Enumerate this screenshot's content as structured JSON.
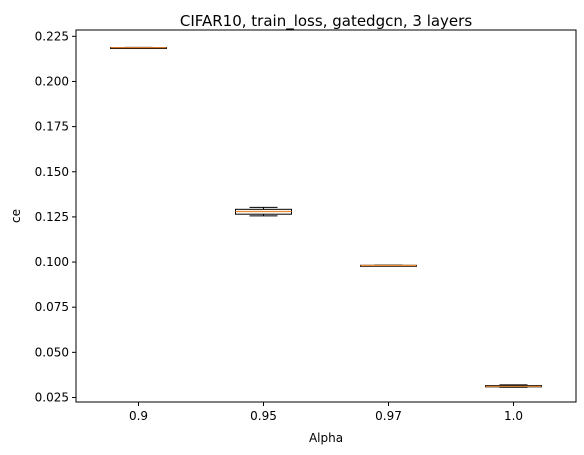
{
  "chart_data": {
    "type": "box",
    "title": "CIFAR10, train_loss, gatedgcn, 3 layers",
    "xlabel": "Alpha",
    "ylabel": "ce",
    "categories": [
      "0.9",
      "0.95",
      "0.97",
      "1.0"
    ],
    "ylim": [
      0.0225,
      0.2285
    ],
    "yticks": [
      0.025,
      0.05,
      0.075,
      0.1,
      0.125,
      0.15,
      0.175,
      0.2,
      0.225
    ],
    "ytick_labels": [
      "0.025",
      "0.050",
      "0.075",
      "0.100",
      "0.125",
      "0.150",
      "0.175",
      "0.200",
      "0.225"
    ],
    "boxes": [
      {
        "category": "0.9",
        "whislo": 0.2185,
        "q1": 0.2186,
        "med": 0.2187,
        "q3": 0.2188,
        "whishi": 0.2189
      },
      {
        "category": "0.95",
        "whislo": 0.1256,
        "q1": 0.1265,
        "med": 0.128,
        "q3": 0.1292,
        "whishi": 0.1303
      },
      {
        "category": "0.97",
        "whislo": 0.0979,
        "q1": 0.098,
        "med": 0.0981,
        "q3": 0.0982,
        "whishi": 0.0983
      },
      {
        "category": "1.0",
        "whislo": 0.0307,
        "q1": 0.0309,
        "med": 0.0312,
        "q3": 0.0316,
        "whishi": 0.032
      }
    ],
    "grid": false,
    "colors": {
      "box": "#000000",
      "median": "#f08a32"
    }
  }
}
